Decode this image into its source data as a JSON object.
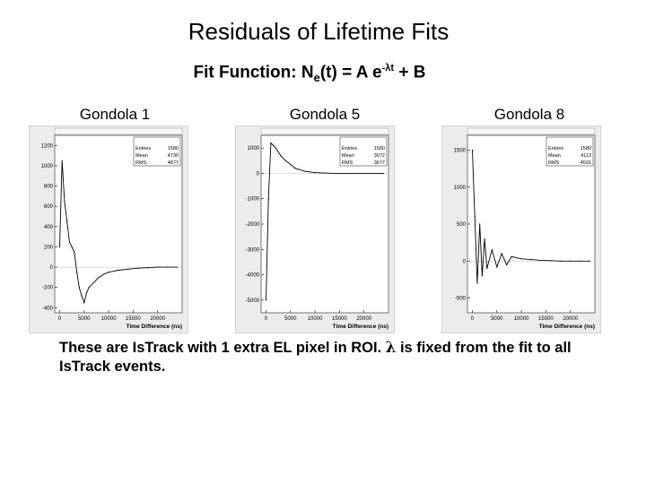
{
  "slide": {
    "title": "Residuals of Lifetime Fits",
    "fit_function_prefix": "Fit Function: N",
    "fit_function_sub": "e",
    "fit_function_mid": "(t) = A e",
    "fit_function_sup": "-λt",
    "fit_function_suffix": " + B",
    "caption_part1": "These are IsTrack with 1 extra EL pixel in ROI.",
    "caption_lambda": "λ",
    "caption_part2": " is fixed from the fit to all IsTrack events."
  },
  "chart_data": [
    {
      "type": "line",
      "panel_label": "Gondola 1",
      "xlabel": "Time Difference (ns)",
      "xlim": [
        -1000,
        25000
      ],
      "ylim": [
        -450,
        1300
      ],
      "xticks": [
        0,
        5000,
        10000,
        15000,
        20000
      ],
      "xtick_labels": [
        "0",
        "5000",
        "10000",
        "15000",
        "20000"
      ],
      "yticks": [
        -400,
        -200,
        0,
        200,
        400,
        600,
        800,
        1000,
        1200
      ],
      "ytick_labels": [
        "-400",
        "-200",
        "0",
        "200",
        "400",
        "600",
        "800",
        "1000",
        "1200"
      ],
      "x": [
        0,
        500,
        1000,
        1500,
        2000,
        2500,
        3000,
        3500,
        4000,
        4500,
        5000,
        5500,
        6000,
        7000,
        8000,
        9000,
        10000,
        12000,
        14000,
        16000,
        18000,
        20000,
        22000,
        24000
      ],
      "y": [
        200,
        1050,
        650,
        450,
        250,
        200,
        150,
        -50,
        -200,
        -280,
        -350,
        -250,
        -200,
        -150,
        -100,
        -70,
        -50,
        -30,
        -20,
        -10,
        -5,
        0,
        0,
        0
      ],
      "stats": [
        [
          "Entries",
          "1580"
        ],
        [
          "Mean",
          "4730"
        ],
        [
          "RMS",
          "4877"
        ]
      ]
    },
    {
      "type": "line",
      "panel_label": "Gondola 5",
      "xlabel": "Time Difference (ns)",
      "xlim": [
        -1000,
        25000
      ],
      "ylim": [
        -5500,
        1500
      ],
      "xticks": [
        0,
        5000,
        10000,
        15000,
        20000
      ],
      "xtick_labels": [
        "0",
        "5000",
        "10000",
        "15000",
        "20000"
      ],
      "yticks": [
        -5000,
        -4000,
        -3000,
        -2000,
        -1000,
        0,
        1000
      ],
      "ytick_labels": [
        "-5000",
        "-4000",
        "-3000",
        "-2000",
        "-1000",
        "0",
        "1000"
      ],
      "x": [
        0,
        500,
        1000,
        1500,
        2000,
        3000,
        4000,
        5000,
        6000,
        8000,
        10000,
        12000,
        14000,
        16000,
        18000,
        20000,
        22000,
        24000
      ],
      "y": [
        -5000,
        -1000,
        1200,
        1100,
        1000,
        700,
        500,
        350,
        200,
        80,
        30,
        10,
        0,
        0,
        0,
        0,
        0,
        0
      ],
      "stats": [
        [
          "Entries",
          "1580"
        ],
        [
          "Mean",
          "3072"
        ],
        [
          "RMS",
          "3677"
        ]
      ]
    },
    {
      "type": "line",
      "panel_label": "Gondola 8",
      "xlabel": "Time Difference (ns)",
      "xlim": [
        -1000,
        25000
      ],
      "ylim": [
        -700,
        1700
      ],
      "xticks": [
        0,
        5000,
        10000,
        15000,
        20000
      ],
      "xtick_labels": [
        "0",
        "5000",
        "10000",
        "15000",
        "20000"
      ],
      "yticks": [
        -500,
        0,
        500,
        1000,
        1500
      ],
      "ytick_labels": [
        "-500",
        "0",
        "500",
        "1000",
        "1500"
      ],
      "x": [
        0,
        500,
        1000,
        1500,
        2000,
        2500,
        3000,
        4000,
        5000,
        6000,
        7000,
        8000,
        10000,
        12000,
        14000,
        16000,
        18000,
        20000,
        22000,
        24000
      ],
      "y": [
        1500,
        600,
        -300,
        500,
        -200,
        300,
        -100,
        150,
        -80,
        100,
        -50,
        60,
        30,
        20,
        10,
        5,
        0,
        0,
        0,
        0
      ],
      "stats": [
        [
          "Entries",
          "1580"
        ],
        [
          "Mean",
          "4113"
        ],
        [
          "RMS",
          "4531"
        ]
      ]
    }
  ]
}
